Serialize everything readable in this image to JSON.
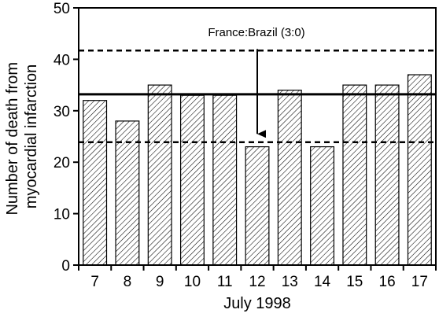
{
  "chart_data": {
    "type": "bar",
    "title": "",
    "xlabel": "July 1998",
    "ylabel_lines": [
      "Number of death from",
      "myocardial infarction"
    ],
    "categories": [
      "7",
      "8",
      "9",
      "10",
      "11",
      "12",
      "13",
      "14",
      "15",
      "16",
      "17"
    ],
    "values": [
      32,
      28,
      35,
      33,
      33,
      23,
      34,
      23,
      35,
      35,
      37
    ],
    "ylim": [
      0,
      50
    ],
    "yticks": [
      0,
      10,
      20,
      30,
      40,
      50
    ],
    "bar_fill": "hatched",
    "reference_lines": [
      {
        "value": 33.2,
        "style": "solid"
      },
      {
        "value": 41.7,
        "style": "dashed"
      },
      {
        "value": 23.9,
        "style": "dashed"
      }
    ],
    "annotation": {
      "text": "France:Brazil (3:0)",
      "arrow_from_y": 42,
      "arrow_to_y": 25.5,
      "category": "12"
    },
    "grid": false,
    "legend": "none"
  }
}
